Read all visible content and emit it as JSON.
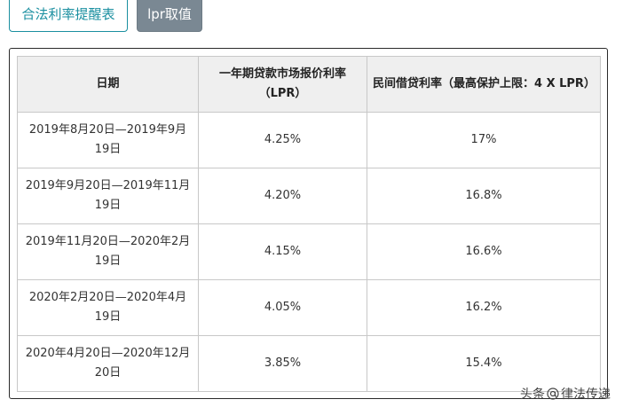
{
  "tabs": [
    {
      "label": "合法利率提醒表",
      "active": false
    },
    {
      "label": "lpr取值",
      "active": true
    }
  ],
  "table": {
    "headers": [
      "日期",
      "一年期贷款市场报价利率（LPR）",
      "民间借贷利率（最高保护上限：4 X LPR）"
    ],
    "rows": [
      {
        "date": "2019年8月20日—2019年9月19日",
        "lpr": "4.25%",
        "private": "17%"
      },
      {
        "date": "2019年9月20日—2019年11月19日",
        "lpr": "4.20%",
        "private": "16.8%"
      },
      {
        "date": "2019年11月20日—2020年2月19日",
        "lpr": "4.15%",
        "private": "16.6%"
      },
      {
        "date": "2020年2月20日—2020年4月19日",
        "lpr": "4.05%",
        "private": "16.2%"
      },
      {
        "date": "2020年4月20日—2020年12月20日",
        "lpr": "3.85%",
        "private": "15.4%"
      }
    ]
  },
  "watermark": {
    "prefix": "头条",
    "name": "律法传递"
  },
  "colors": {
    "accent": "#1a8fa0",
    "active_tab_bg": "#7a8893",
    "header_bg": "#efefef"
  }
}
